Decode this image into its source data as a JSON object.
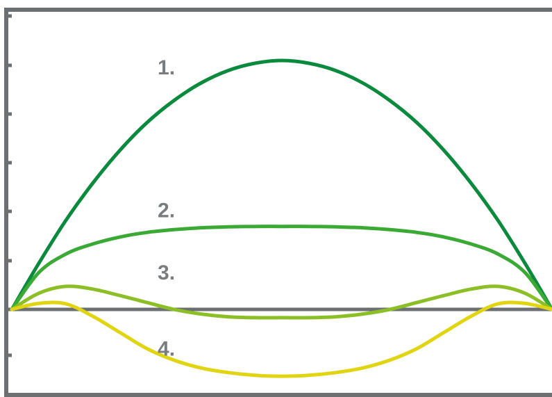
{
  "chart_data": {
    "type": "line",
    "title": "",
    "xlabel": "",
    "ylabel": "",
    "xlim": [
      0,
      1
    ],
    "ylim": [
      -2,
      7
    ],
    "grid": false,
    "zero_line": true,
    "axis_color": "#6d7073",
    "label_color": "#7a7d80",
    "series": [
      {
        "label": "1.",
        "color": "#0a8a3c",
        "x": [
          0,
          0.05,
          0.1,
          0.15,
          0.2,
          0.25,
          0.3,
          0.35,
          0.4,
          0.45,
          0.5,
          0.55,
          0.6,
          0.65,
          0.7,
          0.75,
          0.8,
          0.85,
          0.9,
          0.95,
          1
        ],
        "y": [
          0,
          1.0,
          1.93,
          2.74,
          3.45,
          4.05,
          4.53,
          4.91,
          5.18,
          5.34,
          5.4,
          5.34,
          5.18,
          4.91,
          4.53,
          4.05,
          3.45,
          2.74,
          1.93,
          1.0,
          0
        ]
      },
      {
        "label": "2.",
        "color": "#3aaa35",
        "x": [
          0,
          0.05,
          0.1,
          0.15,
          0.2,
          0.25,
          0.3,
          0.35,
          0.4,
          0.45,
          0.5,
          0.55,
          0.6,
          0.65,
          0.7,
          0.75,
          0.8,
          0.85,
          0.9,
          0.95,
          1
        ],
        "y": [
          0,
          0.8,
          1.2,
          1.42,
          1.57,
          1.67,
          1.73,
          1.77,
          1.79,
          1.8,
          1.8,
          1.8,
          1.79,
          1.77,
          1.73,
          1.67,
          1.57,
          1.42,
          1.2,
          0.8,
          0
        ]
      },
      {
        "label": "3.",
        "color": "#8cbf26",
        "x": [
          0,
          0.05,
          0.1,
          0.15,
          0.2,
          0.25,
          0.3,
          0.35,
          0.4,
          0.45,
          0.5,
          0.55,
          0.6,
          0.65,
          0.7,
          0.75,
          0.8,
          0.85,
          0.9,
          0.95,
          1
        ],
        "y": [
          0,
          0.35,
          0.5,
          0.44,
          0.3,
          0.15,
          0.0,
          -0.1,
          -0.16,
          -0.18,
          -0.18,
          -0.18,
          -0.16,
          -0.1,
          0.0,
          0.15,
          0.3,
          0.44,
          0.5,
          0.35,
          0
        ]
      },
      {
        "label": "4.",
        "color": "#e1d512",
        "x": [
          0,
          0.05,
          0.1,
          0.15,
          0.2,
          0.25,
          0.3,
          0.35,
          0.4,
          0.45,
          0.5,
          0.55,
          0.6,
          0.65,
          0.7,
          0.75,
          0.8,
          0.85,
          0.9,
          0.95,
          1
        ],
        "y": [
          0,
          0.13,
          0.12,
          -0.15,
          -0.5,
          -0.85,
          -1.1,
          -1.27,
          -1.37,
          -1.43,
          -1.45,
          -1.43,
          -1.37,
          -1.27,
          -1.1,
          -0.85,
          -0.5,
          -0.15,
          0.12,
          0.13,
          0
        ]
      }
    ],
    "labels": [
      {
        "text": "1.",
        "x": 0.27,
        "y": 5.1
      },
      {
        "text": "2.",
        "x": 0.27,
        "y": 2.0
      },
      {
        "text": "3.",
        "x": 0.27,
        "y": 0.65
      },
      {
        "text": "4.",
        "x": 0.27,
        "y": -1.0
      }
    ]
  }
}
